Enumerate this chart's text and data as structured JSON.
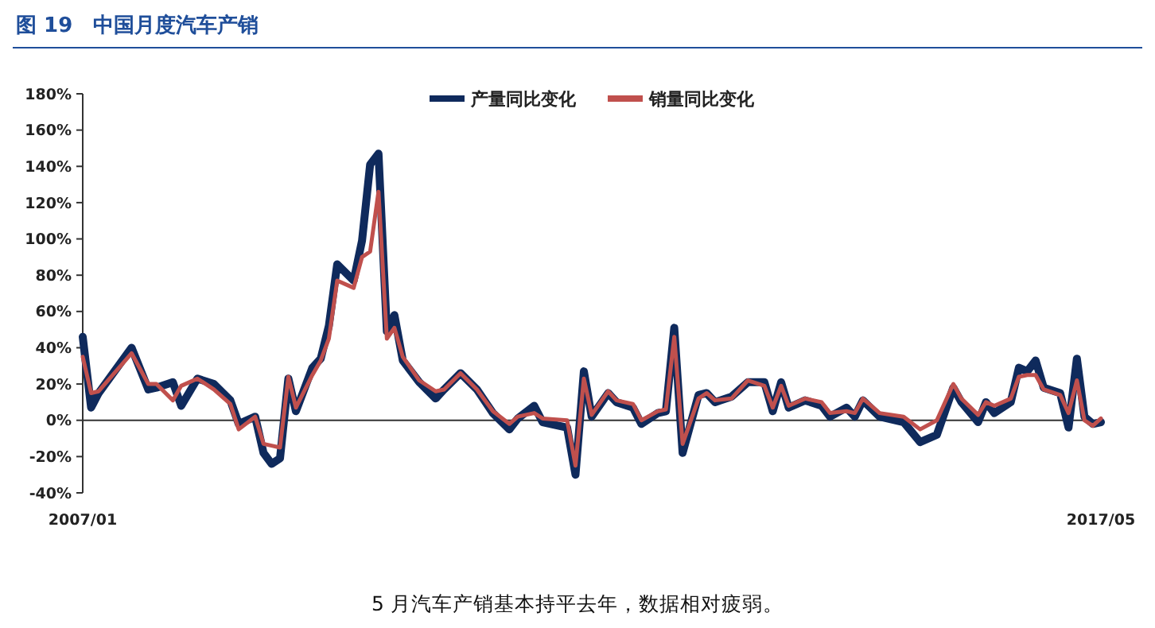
{
  "chart_data": {
    "type": "line",
    "title": "图 19　中国月度汽车产销",
    "x": [
      "2007-01",
      "2007-02",
      "2007-03",
      "2007-07",
      "2007-09",
      "2007-10",
      "2007-12",
      "2008-01",
      "2008-03",
      "2008-05",
      "2008-07",
      "2008-08",
      "2008-10",
      "2008-11",
      "2008-12",
      "2009-01",
      "2009-02",
      "2009-03",
      "2009-05",
      "2009-06",
      "2009-07",
      "2009-08",
      "2009-10",
      "2009-11",
      "2009-12",
      "2010-01",
      "2010-02",
      "2010-03",
      "2010-04",
      "2010-06",
      "2010-08",
      "2010-09",
      "2010-11",
      "2011-01",
      "2011-03",
      "2011-05",
      "2011-06",
      "2011-08",
      "2011-09",
      "2011-12",
      "2012-01",
      "2012-02",
      "2012-03",
      "2012-05",
      "2012-06",
      "2012-08",
      "2012-09",
      "2012-11",
      "2012-12",
      "2013-01",
      "2013-02",
      "2013-04",
      "2013-05",
      "2013-06",
      "2013-08",
      "2013-10",
      "2013-12",
      "2014-01",
      "2014-02",
      "2014-03",
      "2014-05",
      "2014-07",
      "2014-08",
      "2014-10",
      "2014-11",
      "2014-12",
      "2015-02",
      "2015-05",
      "2015-07",
      "2015-09",
      "2015-11",
      "2015-12",
      "2016-02",
      "2016-03",
      "2016-04",
      "2016-06",
      "2016-07",
      "2016-08",
      "2016-09",
      "2016-10",
      "2016-12",
      "2017-01",
      "2017-02",
      "2017-03",
      "2017-04",
      "2017-05"
    ],
    "series": [
      {
        "name": "产量同比变化",
        "color": "#0f2a5c",
        "values": [
          46,
          7,
          15,
          40,
          17,
          18,
          21,
          8,
          23,
          20,
          11,
          -2,
          2,
          -18,
          -24,
          -21,
          23,
          5,
          29,
          34,
          52,
          86,
          77,
          99,
          141,
          147,
          49,
          58,
          33,
          21,
          12,
          17,
          26,
          17,
          4,
          -5,
          1,
          8,
          -1,
          -4,
          -30,
          27,
          2,
          15,
          10,
          7,
          -2,
          4,
          5,
          51,
          -18,
          14,
          15,
          10,
          13,
          21,
          21,
          5,
          21,
          7,
          11,
          8,
          2,
          7,
          2,
          11,
          2,
          -1,
          -12,
          -8,
          18,
          10,
          -1,
          10,
          4,
          10,
          29,
          27,
          33,
          18,
          15,
          -4,
          34,
          2,
          -2,
          -1
        ]
      },
      {
        "name": "销量同比变化",
        "color": "#c0504d",
        "values": [
          35,
          15,
          16,
          37,
          20,
          20,
          11,
          19,
          23,
          17,
          9,
          -5,
          2,
          -13,
          -14,
          -15,
          24,
          7,
          25,
          33,
          45,
          77,
          73,
          90,
          93,
          126,
          45,
          51,
          35,
          22,
          16,
          17,
          26,
          17,
          5,
          -2,
          2,
          4,
          1,
          0,
          -25,
          23,
          3,
          16,
          11,
          9,
          0,
          5,
          6,
          46,
          -13,
          12,
          15,
          11,
          12,
          22,
          19,
          7,
          19,
          8,
          12,
          10,
          4,
          5,
          4,
          12,
          4,
          2,
          -5,
          0,
          20,
          12,
          3,
          10,
          8,
          12,
          24,
          25,
          25,
          17,
          14,
          4,
          22,
          0,
          -3,
          1
        ]
      }
    ],
    "xlim": [
      "2007-01",
      "2017-05"
    ],
    "xticks": [
      {
        "value": "2007-01",
        "label": "2007/01"
      },
      {
        "value": "2017-05",
        "label": "2017/05"
      }
    ],
    "ylim": [
      -40,
      180
    ],
    "yticks": [
      {
        "value": -40,
        "label": "-40%"
      },
      {
        "value": -20,
        "label": "-20%"
      },
      {
        "value": 0,
        "label": "0%"
      },
      {
        "value": 20,
        "label": "20%"
      },
      {
        "value": 40,
        "label": "40%"
      },
      {
        "value": 60,
        "label": "60%"
      },
      {
        "value": 80,
        "label": "80%"
      },
      {
        "value": 100,
        "label": "100%"
      },
      {
        "value": 120,
        "label": "120%"
      },
      {
        "value": 140,
        "label": "140%"
      },
      {
        "value": 160,
        "label": "160%"
      },
      {
        "value": 180,
        "label": "180%"
      }
    ],
    "legend": "top",
    "line_style": "solid",
    "marker": "none",
    "annotations": [
      "5 月汽车产销基本持平去年，数据相对疲弱。"
    ]
  }
}
